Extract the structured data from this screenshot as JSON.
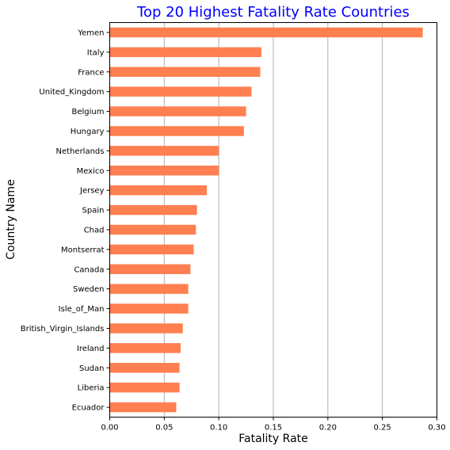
{
  "chart_data": {
    "type": "bar",
    "orientation": "horizontal",
    "title": "Top 20 Highest Fatality Rate Countries",
    "xlabel": "Fatality Rate",
    "ylabel": "Country Name",
    "xlim": [
      0,
      0.3
    ],
    "xticks": [
      "0.00",
      "0.05",
      "0.10",
      "0.15",
      "0.20",
      "0.25",
      "0.30"
    ],
    "grid": "vertical",
    "categories": [
      "Yemen",
      "Italy",
      "France",
      "United_Kingdom",
      "Belgium",
      "Hungary",
      "Netherlands",
      "Mexico",
      "Jersey",
      "Spain",
      "Chad",
      "Montserrat",
      "Canada",
      "Sweden",
      "Isle_of_Man",
      "British_Virgin_Islands",
      "Ireland",
      "Sudan",
      "Liberia",
      "Ecuador"
    ],
    "values": [
      0.287,
      0.139,
      0.138,
      0.13,
      0.125,
      0.123,
      0.1,
      0.1,
      0.089,
      0.08,
      0.079,
      0.077,
      0.074,
      0.072,
      0.072,
      0.067,
      0.065,
      0.064,
      0.064,
      0.061
    ],
    "colors": {
      "bar": "#ff7f50",
      "title": "#0000ff",
      "grid": "#b0b0b0"
    }
  }
}
